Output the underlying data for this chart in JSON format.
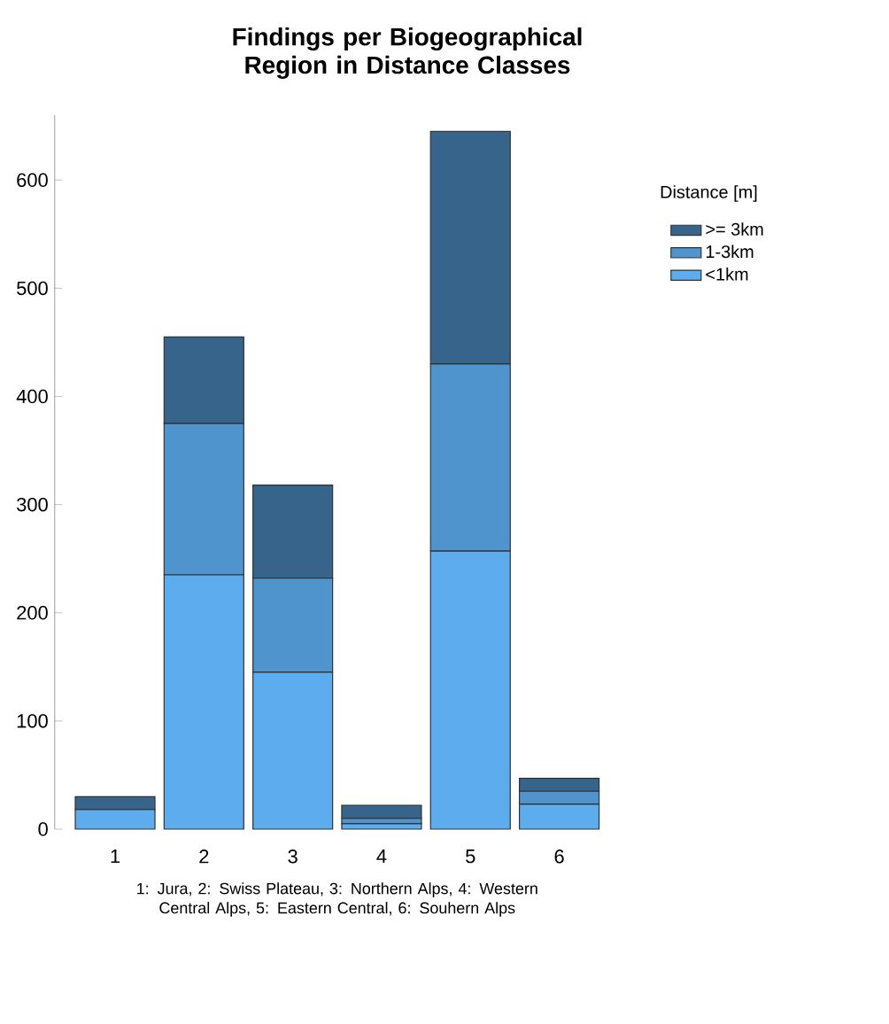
{
  "chart_data": {
    "type": "bar",
    "stacked": true,
    "title": "Findings per Biogeographical Region in Distance Classes",
    "xlabel": "1: Jura, 2: Swiss Plateau, 3: Northern Alps, 4: Western Central Alps, 5: Eastern Central, 6: Souhern Alps",
    "legend_title": "Distance [m]",
    "legend": "right",
    "categories": [
      "1",
      "2",
      "3",
      "4",
      "5",
      "6"
    ],
    "series": [
      {
        "name": "<1km",
        "color": "#5cacee",
        "values": [
          18,
          235,
          145,
          5,
          257,
          23
        ]
      },
      {
        "name": "1-3km",
        "color": "#4f94cd",
        "values": [
          0,
          140,
          87,
          5,
          173,
          12
        ]
      },
      {
        "name": ">= 3km",
        "color": "#36648b",
        "values": [
          12,
          80,
          86,
          12,
          215,
          12
        ]
      }
    ],
    "ylim": [
      0,
      660
    ],
    "yticks": [
      0,
      100,
      200,
      300,
      400,
      500,
      600
    ]
  }
}
